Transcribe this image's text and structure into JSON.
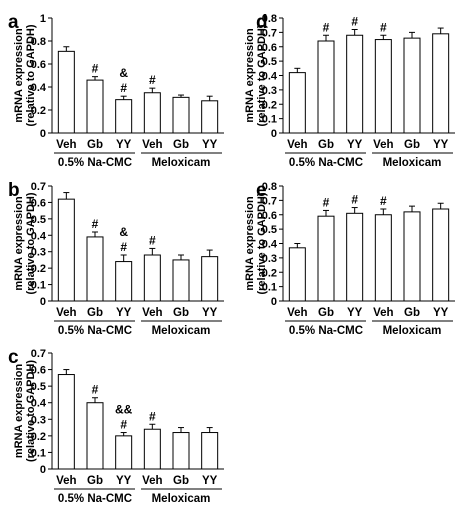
{
  "figure": {
    "background": "#ffffff",
    "bar_fill": "#ffffff",
    "stroke": "#000000"
  },
  "chart_data": [
    {
      "panel": "a",
      "type": "bar",
      "ylabel": [
        "mRNA expression",
        "(relative to GAPDH)"
      ],
      "ylim": [
        0,
        1
      ],
      "yticks": [
        "0",
        "0.2",
        "0.4",
        "0.6",
        "0.8",
        "1"
      ],
      "tick_values": [
        0,
        0.2,
        0.4,
        0.6,
        0.8,
        1
      ],
      "categories": [
        "Veh",
        "Gb",
        "YY",
        "Veh",
        "Gb",
        "YY"
      ],
      "groups": [
        "0.5% Na-CMC",
        "Meloxicam"
      ],
      "values": [
        0.71,
        0.46,
        0.29,
        0.35,
        0.31,
        0.28
      ],
      "errors": [
        0.04,
        0.03,
        0.03,
        0.04,
        0.02,
        0.04
      ],
      "annotations": [
        [],
        [
          "#"
        ],
        [
          "&",
          "#"
        ],
        [
          "#"
        ],
        [],
        []
      ]
    },
    {
      "panel": "b",
      "type": "bar",
      "ylabel": [
        "mRNA expression",
        "(relative to GAPDH)"
      ],
      "ylim": [
        0,
        0.7
      ],
      "yticks": [
        "0",
        "0.1",
        "0.2",
        "0.3",
        "0.4",
        "0.5",
        "0.6",
        "0.7"
      ],
      "tick_values": [
        0,
        0.1,
        0.2,
        0.3,
        0.4,
        0.5,
        0.6,
        0.7
      ],
      "categories": [
        "Veh",
        "Gb",
        "YY",
        "Veh",
        "Gb",
        "YY"
      ],
      "groups": [
        "0.5% Na-CMC",
        "Meloxicam"
      ],
      "values": [
        0.62,
        0.39,
        0.24,
        0.28,
        0.25,
        0.27
      ],
      "errors": [
        0.04,
        0.03,
        0.04,
        0.04,
        0.03,
        0.04
      ],
      "annotations": [
        [],
        [
          "#"
        ],
        [
          "&",
          "#"
        ],
        [
          "#"
        ],
        [],
        []
      ]
    },
    {
      "panel": "c",
      "type": "bar",
      "ylabel": [
        "mRNA expression",
        "(relative to GAPDH)"
      ],
      "ylim": [
        0,
        0.7
      ],
      "yticks": [
        "0",
        "0.1",
        "0.2",
        "0.3",
        "0.4",
        "0.5",
        "0.6",
        "0.7"
      ],
      "tick_values": [
        0,
        0.1,
        0.2,
        0.3,
        0.4,
        0.5,
        0.6,
        0.7
      ],
      "categories": [
        "Veh",
        "Gb",
        "YY",
        "Veh",
        "Gb",
        "YY"
      ],
      "groups": [
        "0.5% Na-CMC",
        "Meloxicam"
      ],
      "values": [
        0.57,
        0.4,
        0.2,
        0.24,
        0.22,
        0.22
      ],
      "errors": [
        0.03,
        0.03,
        0.02,
        0.03,
        0.03,
        0.03
      ],
      "annotations": [
        [],
        [
          "#"
        ],
        [
          "&&",
          "#"
        ],
        [
          "#"
        ],
        [],
        []
      ]
    },
    {
      "panel": "d",
      "type": "bar",
      "ylabel": [
        "mRNA expression",
        "(relative to GAPDH)"
      ],
      "ylim": [
        0,
        0.8
      ],
      "yticks": [
        "0",
        "0.1",
        "0.2",
        "0.3",
        "0.4",
        "0.5",
        "0.6",
        "0.7",
        "0.8"
      ],
      "tick_values": [
        0,
        0.1,
        0.2,
        0.3,
        0.4,
        0.5,
        0.6,
        0.7,
        0.8
      ],
      "categories": [
        "Veh",
        "Gb",
        "YY",
        "Veh",
        "Gb",
        "YY"
      ],
      "groups": [
        "0.5% Na-CMC",
        "Meloxicam"
      ],
      "values": [
        0.42,
        0.64,
        0.68,
        0.65,
        0.66,
        0.69
      ],
      "errors": [
        0.03,
        0.04,
        0.04,
        0.03,
        0.04,
        0.04
      ],
      "annotations": [
        [],
        [
          "#"
        ],
        [
          "#"
        ],
        [
          "#"
        ],
        [],
        []
      ]
    },
    {
      "panel": "e",
      "type": "bar",
      "ylabel": [
        "mRNA expression",
        "(relative to GAPDH)"
      ],
      "ylim": [
        0,
        0.8
      ],
      "yticks": [
        "0",
        "0.1",
        "0.2",
        "0.3",
        "0.4",
        "0.5",
        "0.6",
        "0.7",
        "0.8"
      ],
      "tick_values": [
        0,
        0.1,
        0.2,
        0.3,
        0.4,
        0.5,
        0.6,
        0.7,
        0.8
      ],
      "categories": [
        "Veh",
        "Gb",
        "YY",
        "Veh",
        "Gb",
        "YY"
      ],
      "groups": [
        "0.5% Na-CMC",
        "Meloxicam"
      ],
      "values": [
        0.37,
        0.59,
        0.61,
        0.6,
        0.62,
        0.64
      ],
      "errors": [
        0.03,
        0.04,
        0.04,
        0.04,
        0.04,
        0.04
      ],
      "annotations": [
        [],
        [
          "#"
        ],
        [
          "#"
        ],
        [
          "#"
        ],
        [],
        []
      ]
    }
  ]
}
